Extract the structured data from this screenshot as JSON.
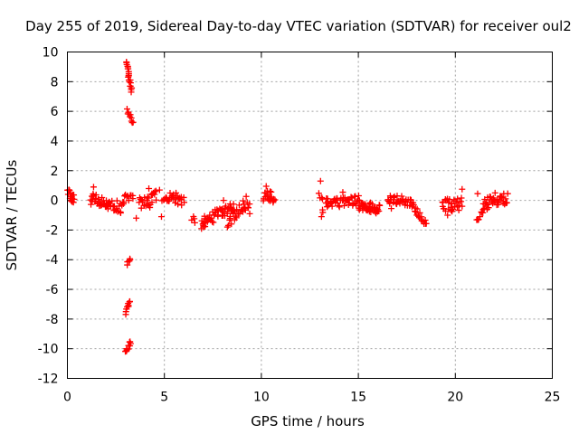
{
  "chart_data": {
    "type": "scatter",
    "title": "Day 255 of 2019, Sidereal Day-to-day VTEC variation (SDTVAR) for receiver oul2",
    "xlabel": "GPS time / hours",
    "ylabel": "SDTVAR / TECUs",
    "xlim": [
      0,
      25
    ],
    "ylim": [
      -12,
      10
    ],
    "xticks": [
      0,
      5,
      10,
      15,
      20,
      25
    ],
    "yticks": [
      -12,
      -10,
      -8,
      -6,
      -4,
      -2,
      0,
      2,
      4,
      6,
      8,
      10
    ],
    "xtick_labels": [
      "0",
      "5",
      "10",
      "15",
      "20",
      "25"
    ],
    "ytick_labels": [
      "-12",
      "-10",
      "-8",
      "-6",
      "-4",
      "-2",
      "0",
      "2",
      "4",
      "6",
      "8",
      "10"
    ],
    "grid": true,
    "marker": "+",
    "marker_color": "#ff0000",
    "series": [
      {
        "name": "SDTVAR",
        "segments": [
          {
            "x0": 0.0,
            "y0": 0.5,
            "x1": 0.35,
            "y1": 0.1,
            "n": 16,
            "jitter": 0.3
          },
          {
            "x0": 1.2,
            "y0": 0.1,
            "x1": 2.9,
            "y1": -0.5,
            "n": 55,
            "jitter": 0.4
          },
          {
            "x0": 3.05,
            "y0": 9.3,
            "x1": 3.3,
            "y1": 7.3,
            "n": 22,
            "jitter": 0.15
          },
          {
            "x0": 3.1,
            "y0": 6.1,
            "x1": 3.35,
            "y1": 5.2,
            "n": 10,
            "jitter": 0.1
          },
          {
            "x0": 3.1,
            "y0": -4.3,
            "x1": 3.25,
            "y1": -3.9,
            "n": 6,
            "jitter": 0.1
          },
          {
            "x0": 3.0,
            "y0": -7.6,
            "x1": 3.2,
            "y1": -6.8,
            "n": 10,
            "jitter": 0.1
          },
          {
            "x0": 3.0,
            "y0": -10.3,
            "x1": 3.25,
            "y1": -9.5,
            "n": 12,
            "jitter": 0.12
          },
          {
            "x0": 3.0,
            "y0": 0.2,
            "x1": 3.4,
            "y1": 0.0,
            "n": 8,
            "jitter": 0.3
          },
          {
            "x0": 3.7,
            "y0": -0.3,
            "x1": 4.6,
            "y1": 0.2,
            "n": 26,
            "jitter": 0.5
          },
          {
            "x0": 4.9,
            "y0": 0.3,
            "x1": 6.0,
            "y1": 0.0,
            "n": 30,
            "jitter": 0.35
          },
          {
            "x0": 6.4,
            "y0": -1.2,
            "x1": 6.6,
            "y1": -1.4,
            "n": 4,
            "jitter": 0.2
          },
          {
            "x0": 6.9,
            "y0": -1.6,
            "x1": 8.6,
            "y1": -0.3,
            "n": 55,
            "jitter": 0.4
          },
          {
            "x0": 8.3,
            "y0": -1.4,
            "x1": 9.4,
            "y1": 0.0,
            "n": 30,
            "jitter": 0.5
          },
          {
            "x0": 10.1,
            "y0": 0.3,
            "x1": 10.7,
            "y1": 0.2,
            "n": 22,
            "jitter": 0.4
          },
          {
            "x0": 13.0,
            "y0": 0.6,
            "x1": 13.2,
            "y1": -0.6,
            "n": 6,
            "jitter": 0.3
          },
          {
            "x0": 13.3,
            "y0": -0.2,
            "x1": 15.0,
            "y1": 0.0,
            "n": 45,
            "jitter": 0.35
          },
          {
            "x0": 15.0,
            "y0": -0.3,
            "x1": 16.1,
            "y1": -0.6,
            "n": 40,
            "jitter": 0.35
          },
          {
            "x0": 16.5,
            "y0": 0.1,
            "x1": 17.8,
            "y1": -0.1,
            "n": 35,
            "jitter": 0.3
          },
          {
            "x0": 17.8,
            "y0": -0.4,
            "x1": 18.5,
            "y1": -1.6,
            "n": 18,
            "jitter": 0.2
          },
          {
            "x0": 19.3,
            "y0": -0.4,
            "x1": 20.3,
            "y1": -0.2,
            "n": 28,
            "jitter": 0.45
          },
          {
            "x0": 21.1,
            "y0": -1.3,
            "x1": 21.4,
            "y1": -0.8,
            "n": 8,
            "jitter": 0.3
          },
          {
            "x0": 21.4,
            "y0": -0.3,
            "x1": 22.7,
            "y1": 0.2,
            "n": 40,
            "jitter": 0.4
          }
        ],
        "points": [
          [
            1.35,
            0.9
          ],
          [
            2.95,
            0.3
          ],
          [
            3.55,
            -1.2
          ],
          [
            4.2,
            0.8
          ],
          [
            4.75,
            0.7
          ],
          [
            4.85,
            -1.1
          ],
          [
            5.6,
            0.5
          ],
          [
            7.05,
            -1.5
          ],
          [
            8.05,
            0.0
          ],
          [
            8.25,
            -1.8
          ],
          [
            9.4,
            -0.9
          ],
          [
            10.25,
            0.95
          ],
          [
            13.05,
            1.3
          ],
          [
            13.1,
            -1.1
          ],
          [
            14.2,
            0.55
          ],
          [
            16.7,
            -0.55
          ],
          [
            17.0,
            0.3
          ],
          [
            19.6,
            -1.0
          ],
          [
            20.35,
            0.75
          ],
          [
            20.35,
            -0.4
          ],
          [
            21.15,
            0.45
          ],
          [
            22.05,
            0.5
          ]
        ]
      }
    ]
  }
}
